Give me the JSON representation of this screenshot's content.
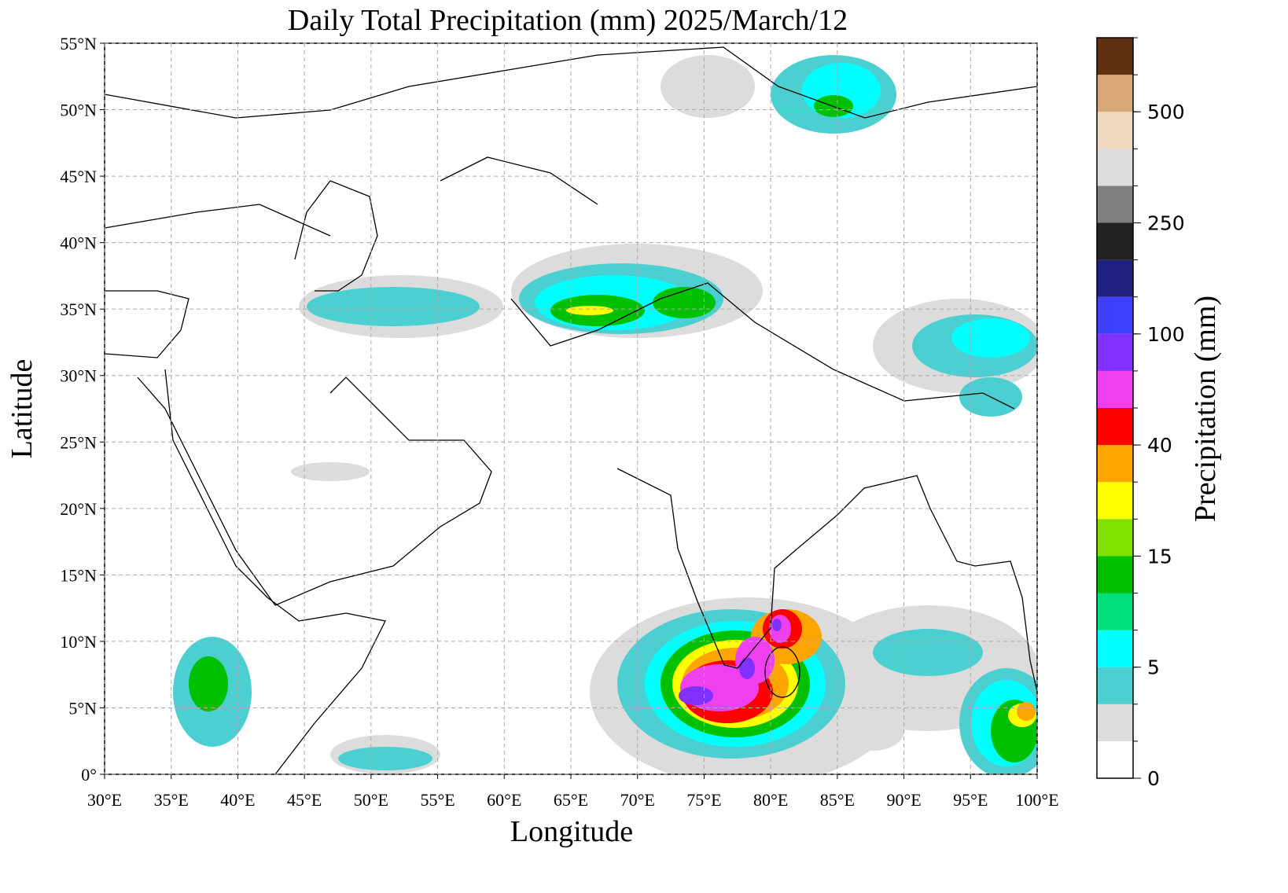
{
  "map": {
    "title": "Daily Total Precipitation (mm)  2025/March/12",
    "xlabel": "Longitude",
    "ylabel": "Latitude",
    "xlim": [
      30,
      100
    ],
    "ylim": [
      0,
      55
    ],
    "grid": true,
    "xticks": [
      {
        "value": 30,
        "label": "30°E"
      },
      {
        "value": 35,
        "label": "35°E"
      },
      {
        "value": 40,
        "label": "40°E"
      },
      {
        "value": 45,
        "label": "45°E"
      },
      {
        "value": 50,
        "label": "50°E"
      },
      {
        "value": 55,
        "label": "55°E"
      },
      {
        "value": 60,
        "label": "60°E"
      },
      {
        "value": 65,
        "label": "65°E"
      },
      {
        "value": 70,
        "label": "70°E"
      },
      {
        "value": 75,
        "label": "75°E"
      },
      {
        "value": 80,
        "label": "80°E"
      },
      {
        "value": 85,
        "label": "85°E"
      },
      {
        "value": 90,
        "label": "90°E"
      },
      {
        "value": 95,
        "label": "95°E"
      },
      {
        "value": 100,
        "label": "100°E"
      }
    ],
    "yticks": [
      {
        "value": 0,
        "label": "0°"
      },
      {
        "value": 5,
        "label": "5°N"
      },
      {
        "value": 10,
        "label": "10°N"
      },
      {
        "value": 15,
        "label": "15°N"
      },
      {
        "value": 20,
        "label": "20°N"
      },
      {
        "value": 25,
        "label": "25°N"
      },
      {
        "value": 30,
        "label": "30°N"
      },
      {
        "value": 35,
        "label": "35°N"
      },
      {
        "value": 40,
        "label": "40°N"
      },
      {
        "value": 45,
        "label": "45°N"
      },
      {
        "value": 50,
        "label": "50°N"
      },
      {
        "value": 55,
        "label": "55°N"
      }
    ]
  },
  "colorbar": {
    "label": "Precipitation (mm)",
    "colors": [
      "#ffffff",
      "#dcdcdc",
      "#4ccfd0",
      "#00ffff",
      "#00e07a",
      "#00c000",
      "#80e000",
      "#ffff00",
      "#ffa500",
      "#ff0000",
      "#ee40ee",
      "#8030ff",
      "#4040ff",
      "#202080",
      "#222222",
      "#808080",
      "#dcdcdc",
      "#f0d8c0",
      "#d8a878",
      "#603010"
    ],
    "ticks": [
      0,
      5,
      15,
      40,
      100,
      250,
      500
    ]
  }
}
